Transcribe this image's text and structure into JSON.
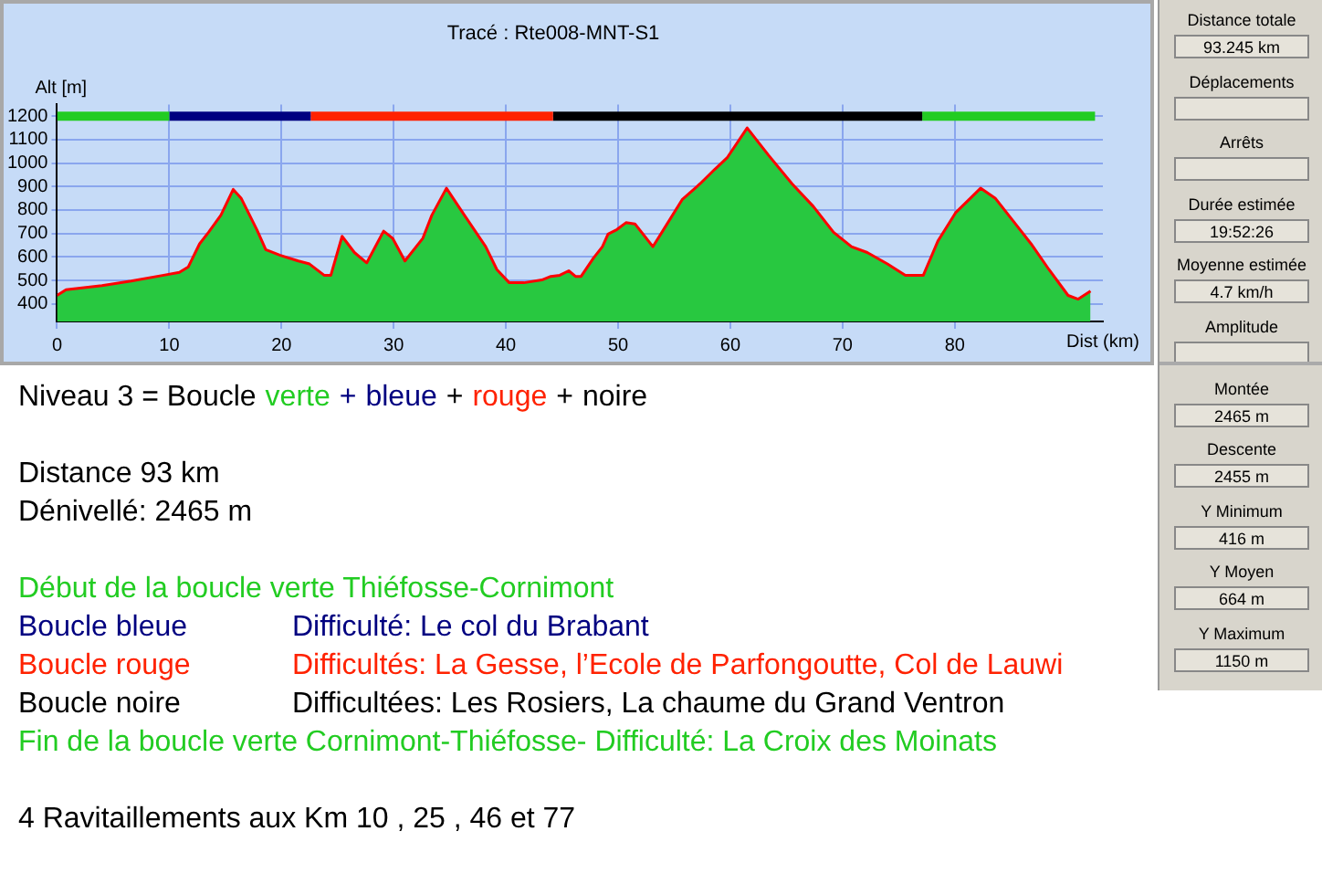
{
  "chart_data": {
    "type": "area",
    "title": "Tracé : Rte008-MNT-S1",
    "xlabel": "Dist (km)",
    "ylabel": "Alt [m]",
    "xlim": [
      0,
      93.2
    ],
    "ylim": [
      325,
      1250
    ],
    "xticks": [
      0,
      10,
      20,
      30,
      40,
      50,
      60,
      70,
      80
    ],
    "yticks": [
      400,
      500,
      600,
      700,
      800,
      900,
      1000,
      1100,
      1200
    ],
    "grid": true,
    "series": [
      {
        "color": "#28c840",
        "x": [
          0,
          0.8,
          4,
          6.6,
          9.5,
          10.9,
          11.7,
          12.7,
          13.5,
          14.6,
          15.7,
          16.4,
          17.8,
          18.6,
          19.9,
          21.5,
          22.5,
          23.8,
          24.4,
          25.4,
          26.5,
          27.6,
          29.1,
          29.9,
          31.0,
          32.6,
          33.4,
          34.7,
          36.3,
          38.2,
          39.2,
          40.3,
          41.6,
          43.2,
          44.0,
          44.8,
          45.6,
          46.2,
          46.7,
          47.8,
          48.6,
          49.1,
          49.9,
          50.7,
          51.5,
          53.1,
          53.9,
          55.7,
          57.3,
          58.6,
          59.7,
          61.5,
          63.4,
          65.5,
          67.4,
          69.2,
          70.8,
          72.2,
          74.0,
          75.6,
          77.2,
          78.5,
          80.1,
          82.3,
          83.6,
          85.2,
          86.8,
          88.4,
          90.1,
          91.0,
          92.1
        ],
        "values": [
          436,
          460,
          478,
          497,
          522,
          534,
          558,
          656,
          705,
          778,
          888,
          851,
          717,
          631,
          607,
          583,
          570,
          522,
          522,
          688,
          619,
          575,
          710,
          680,
          583,
          680,
          778,
          893,
          778,
          644,
          546,
          490,
          490,
          502,
          517,
          522,
          541,
          517,
          517,
          595,
          644,
          697,
          717,
          746,
          741,
          644,
          705,
          844,
          912,
          973,
          1022,
          1150,
          1034,
          912,
          815,
          705,
          644,
          619,
          570,
          522,
          522,
          668,
          790,
          893,
          851,
          754,
          656,
          546,
          436,
          420,
          454
        ]
      },
      {
        "type": "line",
        "color": "#ff0000",
        "x": [
          0,
          0.8,
          4,
          6.6,
          9.5,
          10.9,
          11.7,
          12.7,
          13.5,
          14.6,
          15.7,
          16.4,
          17.8,
          18.6,
          19.9,
          21.5,
          22.5,
          23.8,
          24.4,
          25.4,
          26.5,
          27.6,
          29.1,
          29.9,
          31.0,
          32.6,
          33.4,
          34.7,
          36.3,
          38.2,
          39.2,
          40.3,
          41.6,
          43.2,
          44.0,
          44.8,
          45.6,
          46.2,
          46.7,
          47.8,
          48.6,
          49.1,
          49.9,
          50.7,
          51.5,
          53.1,
          53.9,
          55.7,
          57.3,
          58.6,
          59.7,
          61.5,
          63.4,
          65.5,
          67.4,
          69.2,
          70.8,
          72.2,
          74.0,
          75.6,
          77.2,
          78.5,
          80.1,
          82.3,
          83.6,
          85.2,
          86.8,
          88.4,
          90.1,
          91.0,
          92.1
        ],
        "values": [
          436,
          460,
          478,
          497,
          522,
          534,
          558,
          656,
          705,
          778,
          888,
          851,
          717,
          631,
          607,
          583,
          570,
          522,
          522,
          688,
          619,
          575,
          710,
          680,
          583,
          680,
          778,
          893,
          778,
          644,
          546,
          490,
          490,
          502,
          517,
          522,
          541,
          517,
          517,
          595,
          644,
          697,
          717,
          746,
          741,
          644,
          705,
          844,
          912,
          973,
          1022,
          1150,
          1034,
          912,
          815,
          705,
          644,
          619,
          570,
          522,
          522,
          668,
          790,
          893,
          851,
          754,
          656,
          546,
          436,
          420,
          454
        ]
      },
      {
        "type": "line",
        "color": "#22cc22",
        "x": [
          0,
          10
        ],
        "values": [
          1200,
          1200
        ]
      },
      {
        "type": "line",
        "color": "#000080",
        "x": [
          10,
          22.6
        ],
        "values": [
          1200,
          1200
        ]
      },
      {
        "type": "line",
        "color": "#ff2200",
        "x": [
          22.6,
          44.2
        ],
        "values": [
          1200,
          1200
        ]
      },
      {
        "type": "line",
        "color": "#000000",
        "x": [
          44.2,
          77.1
        ],
        "values": [
          1200,
          1200
        ]
      },
      {
        "type": "line",
        "color": "#22cc22",
        "x": [
          77.1,
          92.5
        ],
        "values": [
          1200,
          1200
        ]
      }
    ],
    "annotations": [
      "Niveau 3 = Boucle",
      "verte",
      "+",
      "bleue",
      "+",
      "rouge",
      "+",
      "noire",
      "Distance 93 km",
      "Dénivellé: 2465 m",
      "Début de la boucle verte Thiéfosse-Cornimont",
      "Boucle bleue",
      "Difficulté: Le col du Brabant",
      "Boucle rouge",
      "Difficultés: La Gesse, l’Ecole de Parfongoutte, Col de Lauwi",
      "Boucle noire",
      "Difficultées: Les Rosiers, La chaume du Grand Ventron",
      "Fin de la boucle verte Cornimont-Thiéfosse- Difficulté: La Croix des Moinats",
      "4 Ravitaillements aux Km 10 , 25 , 46 et 77",
      "Distance totale",
      "93.245 km",
      "Déplacements",
      "Arrêts",
      "Durée estimée",
      "19:52:26",
      "Moyenne estimée",
      "4.7 km/h",
      "Amplitude",
      "Montée",
      "2465 m",
      "Descente",
      "2455 m",
      "Y Minimum",
      "416 m",
      "Y Moyen",
      "664 m",
      "Y Maximum",
      "1150 m"
    ]
  }
}
